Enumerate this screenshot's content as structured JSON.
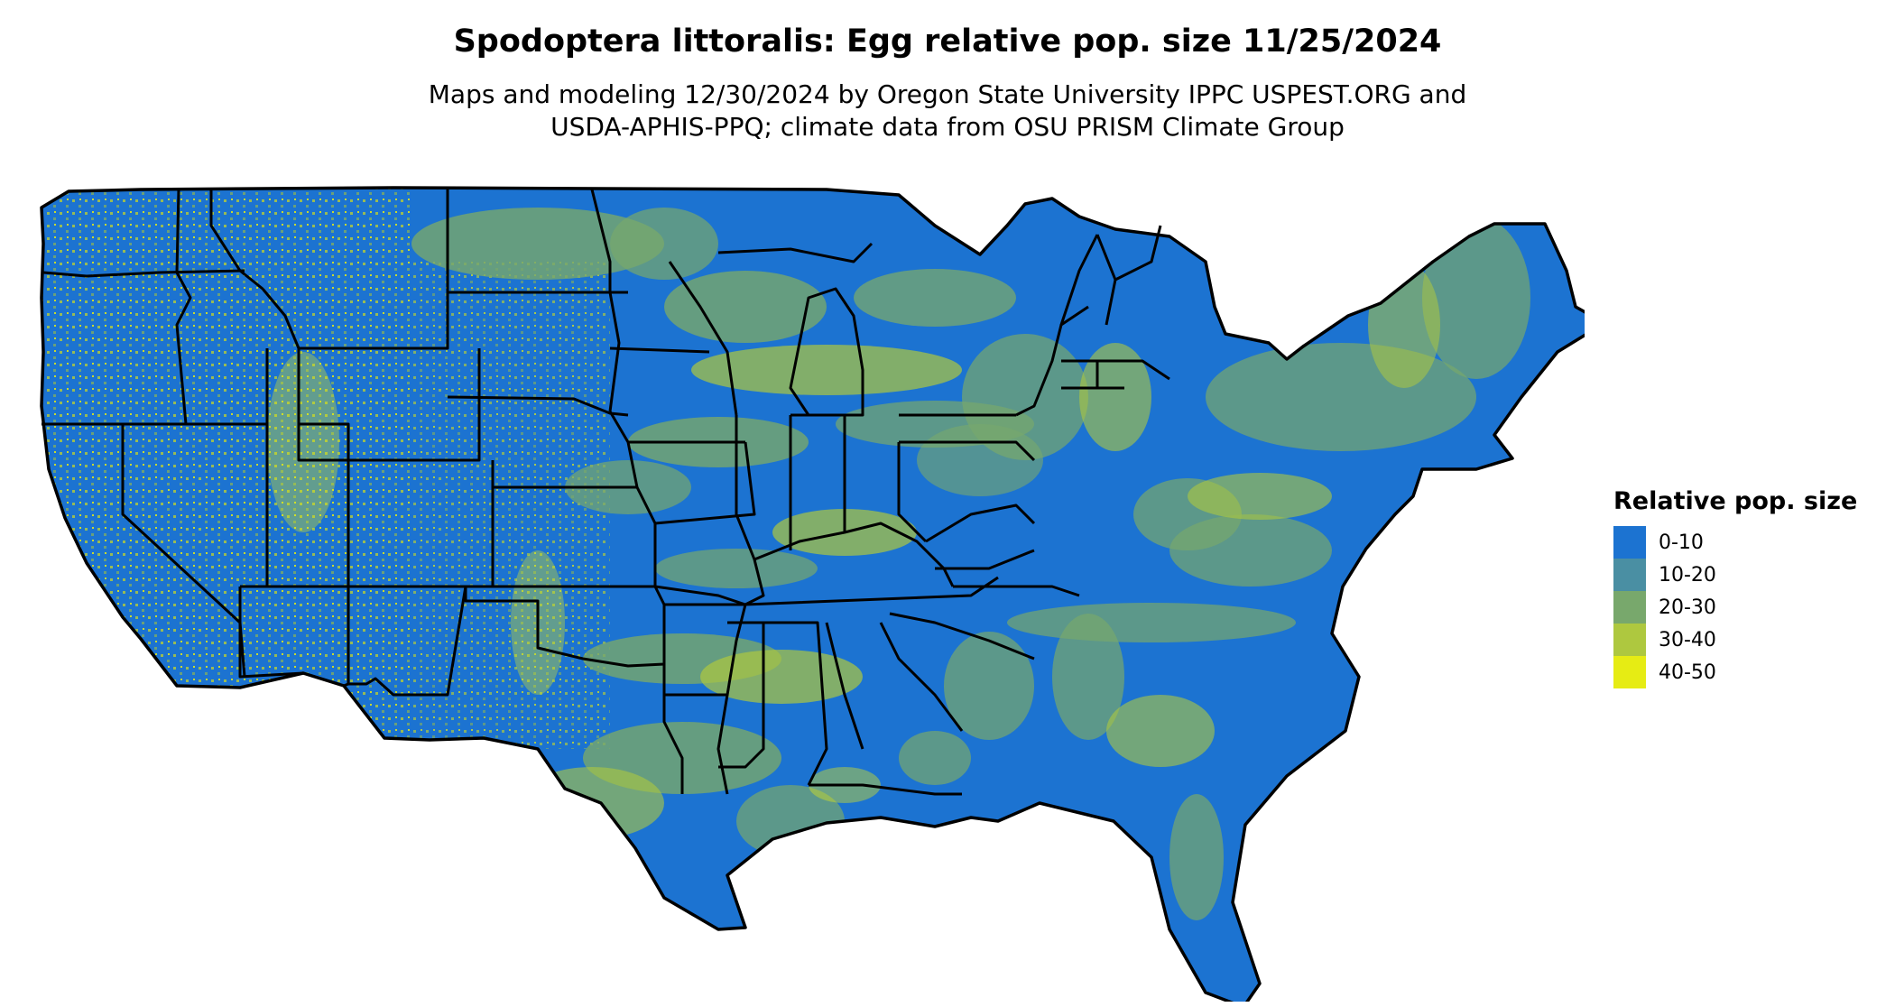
{
  "title": "Spodoptera littoralis: Egg relative pop. size 11/25/2024",
  "subtitle_line1": "Maps and modeling 12/30/2024 by Oregon State University IPPC USPEST.ORG and",
  "subtitle_line2": "USDA-APHIS-PPQ; climate data from OSU PRISM Climate Group",
  "map": {
    "region": "conterminous-united-states",
    "boundaries": "state-outlines",
    "dominant_class": "0-10",
    "background_color": "#ffffff",
    "boundary_color": "#000000"
  },
  "legend": {
    "title": "Relative pop. size",
    "items": [
      {
        "label": "0-10",
        "color": "#1c73d1"
      },
      {
        "label": "10-20",
        "color": "#4a8fa3"
      },
      {
        "label": "20-30",
        "color": "#78a86c"
      },
      {
        "label": "30-40",
        "color": "#aec83f"
      },
      {
        "label": "40-50",
        "color": "#e6ec14"
      }
    ]
  }
}
